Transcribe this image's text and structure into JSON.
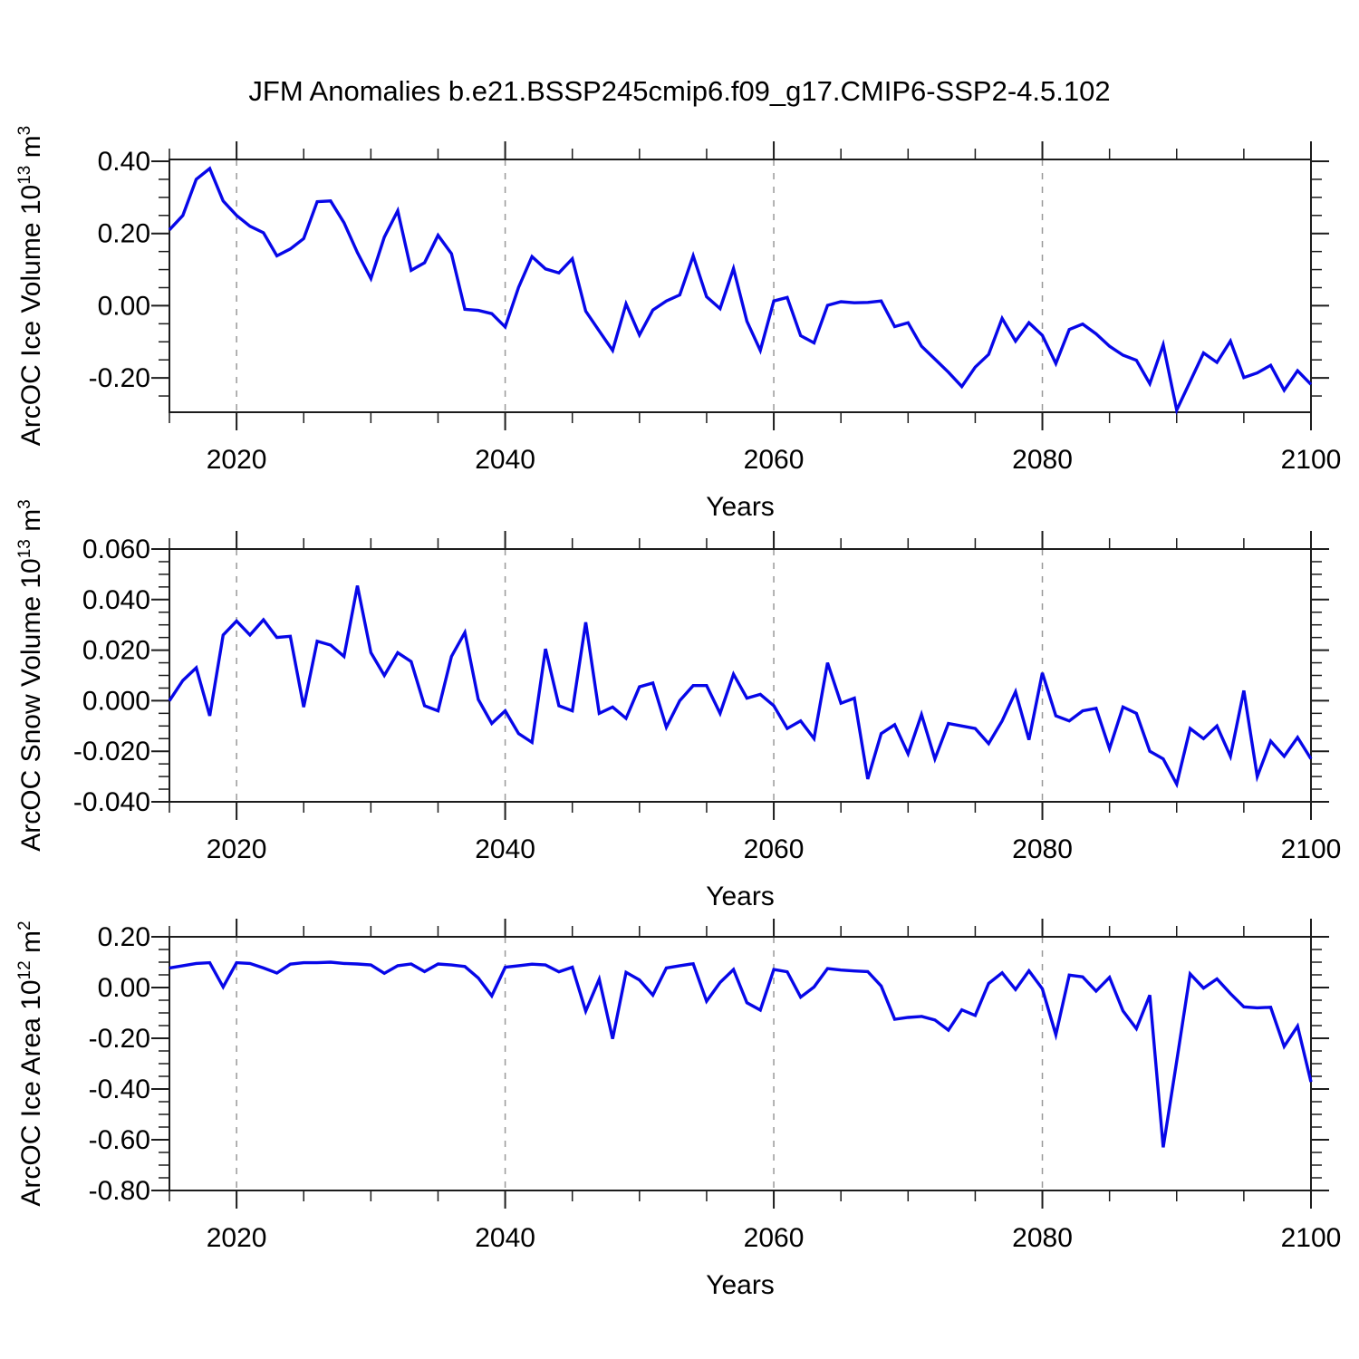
{
  "title": "JFM Anomalies b.e21.BSSP245cmip6.f09_g17.CMIP6-SSP2-4.5.102",
  "style": {
    "line_color": "#0707e8",
    "grid_color": "#999999",
    "frame_color": "#1c1c1c",
    "text_color": "#000000"
  },
  "axes": {
    "x_label": "Years",
    "x_min": 2015,
    "x_max": 2100,
    "x_major_ticks": [
      2020,
      2040,
      2060,
      2080,
      2100
    ],
    "x_tick_labels": [
      "2020",
      "2040",
      "2060",
      "2080",
      "2100"
    ],
    "x_minor_step": 5,
    "x_gridlines": [
      2020,
      2040,
      2060,
      2080
    ]
  },
  "chart_data": [
    {
      "type": "line",
      "name": "ice-volume",
      "ylabel_segments": [
        {
          "t": "ArcOC Ice Volume 10"
        },
        {
          "t": "13",
          "sup": true
        },
        {
          "t": " m"
        },
        {
          "t": "3",
          "sup": true
        }
      ],
      "ylim": [
        -0.295,
        0.405
      ],
      "y_major_ticks": [
        0.4,
        0.2,
        0.0,
        -0.2
      ],
      "y_tick_labels": [
        "0.40",
        "0.20",
        "0.00",
        "-0.20"
      ],
      "y_minor_step": 0.05,
      "x_start": 2015,
      "values": [
        0.21,
        0.25,
        0.35,
        0.38,
        0.29,
        0.25,
        0.22,
        0.202,
        0.138,
        0.157,
        0.186,
        0.288,
        0.29,
        0.23,
        0.147,
        0.075,
        0.19,
        0.263,
        0.098,
        0.119,
        0.195,
        0.144,
        -0.01,
        -0.013,
        -0.022,
        -0.059,
        0.051,
        0.136,
        0.102,
        0.091,
        0.13,
        -0.015,
        -0.07,
        -0.124,
        0.005,
        -0.081,
        -0.012,
        0.013,
        0.03,
        0.138,
        0.025,
        -0.008,
        0.103,
        -0.043,
        -0.124,
        0.013,
        0.023,
        -0.083,
        -0.103,
        0.001,
        0.011,
        0.008,
        0.009,
        0.013,
        -0.058,
        -0.047,
        -0.112,
        -0.148,
        -0.184,
        -0.224,
        -0.17,
        -0.135,
        -0.035,
        -0.098,
        -0.047,
        -0.082,
        -0.16,
        -0.066,
        -0.051,
        -0.078,
        -0.112,
        -0.137,
        -0.151,
        -0.216,
        -0.108,
        -0.289,
        -0.21,
        -0.131,
        -0.157,
        -0.098,
        -0.199,
        -0.186,
        -0.165,
        -0.234,
        -0.18,
        -0.218
      ]
    },
    {
      "type": "line",
      "name": "snow-volume",
      "ylabel_segments": [
        {
          "t": "ArcOC Snow Volume 10"
        },
        {
          "t": "13",
          "sup": true
        },
        {
          "t": " m"
        },
        {
          "t": "3",
          "sup": true
        }
      ],
      "ylim": [
        -0.04,
        0.06
      ],
      "y_major_ticks": [
        0.06,
        0.04,
        0.02,
        0.0,
        -0.02,
        -0.04
      ],
      "y_tick_labels": [
        "0.060",
        "0.040",
        "0.020",
        "0.000",
        "-0.020",
        "-0.040"
      ],
      "y_minor_step": 0.005,
      "x_start": 2015,
      "values": [
        0.0,
        0.008,
        0.013,
        -0.006,
        0.026,
        0.0315,
        0.026,
        0.032,
        0.025,
        0.0255,
        -0.0025,
        0.0235,
        0.022,
        0.0175,
        0.0455,
        0.019,
        0.01,
        0.019,
        0.0155,
        -0.002,
        -0.004,
        0.0175,
        0.027,
        0.0005,
        -0.009,
        -0.004,
        -0.013,
        -0.0165,
        0.0205,
        -0.002,
        -0.004,
        0.031,
        -0.005,
        -0.0025,
        -0.007,
        0.0055,
        0.007,
        -0.0105,
        0.0,
        0.006,
        0.006,
        -0.005,
        0.0105,
        0.001,
        0.0025,
        -0.002,
        -0.011,
        -0.008,
        -0.015,
        0.015,
        -0.001,
        0.001,
        -0.031,
        -0.013,
        -0.0095,
        -0.021,
        -0.0055,
        -0.023,
        -0.009,
        -0.01,
        -0.011,
        -0.017,
        -0.008,
        0.0035,
        -0.0155,
        0.011,
        -0.006,
        -0.008,
        -0.004,
        -0.003,
        -0.019,
        -0.0025,
        -0.005,
        -0.02,
        -0.023,
        -0.033,
        -0.011,
        -0.015,
        -0.01,
        -0.022,
        0.004,
        -0.03,
        -0.016,
        -0.022,
        -0.0145,
        -0.023
      ]
    },
    {
      "type": "line",
      "name": "ice-area",
      "ylabel_segments": [
        {
          "t": "ArcOC Ice Area 10"
        },
        {
          "t": "12",
          "sup": true
        },
        {
          "t": " m"
        },
        {
          "t": "2",
          "sup": true
        }
      ],
      "ylim": [
        -0.8,
        0.2
      ],
      "y_major_ticks": [
        0.2,
        0.0,
        -0.2,
        -0.4,
        -0.6,
        -0.8
      ],
      "y_tick_labels": [
        "0.20",
        "0.00",
        "-0.20",
        "-0.40",
        "-0.60",
        "-0.80"
      ],
      "y_minor_step": 0.05,
      "x_start": 2015,
      "values": [
        0.077,
        0.086,
        0.095,
        0.098,
        0.002,
        0.098,
        0.095,
        0.077,
        0.057,
        0.092,
        0.098,
        0.098,
        0.1,
        0.095,
        0.093,
        0.089,
        0.056,
        0.086,
        0.093,
        0.063,
        0.093,
        0.089,
        0.083,
        0.038,
        -0.033,
        0.08,
        0.086,
        0.092,
        0.089,
        0.062,
        0.08,
        -0.093,
        0.033,
        -0.202,
        0.06,
        0.03,
        -0.03,
        0.077,
        0.086,
        0.094,
        -0.054,
        0.02,
        0.071,
        -0.06,
        -0.089,
        0.071,
        0.062,
        -0.038,
        0.002,
        0.075,
        0.069,
        0.0655,
        0.063,
        0.006,
        -0.125,
        -0.118,
        -0.114,
        -0.128,
        -0.168,
        -0.088,
        -0.11,
        0.016,
        0.058,
        -0.008,
        0.066,
        -0.005,
        -0.186,
        0.049,
        0.042,
        -0.014,
        0.04,
        -0.092,
        -0.162,
        -0.03,
        -0.63,
        -0.29,
        0.054,
        -0.002,
        0.034,
        -0.024,
        -0.076,
        -0.08,
        -0.078,
        -0.232,
        -0.152,
        -0.372
      ]
    }
  ]
}
